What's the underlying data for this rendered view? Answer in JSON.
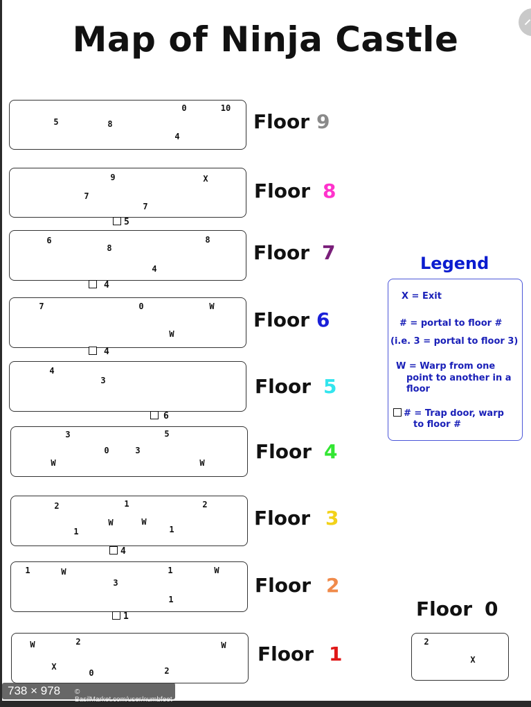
{
  "title": "Map of Ninja Castle",
  "floor_word": "Floor",
  "floors": [
    {
      "number": "9",
      "color": "#8a8a8a",
      "marks": [
        "0",
        "10",
        "5",
        "8",
        "4"
      ],
      "trap_door": ""
    },
    {
      "number": "8",
      "color": "#ff33cc",
      "marks": [
        "9",
        "X",
        "7",
        "7"
      ],
      "trap_door": "5"
    },
    {
      "number": "7",
      "color": "#7a1f7a",
      "marks": [
        "6",
        "8",
        "8",
        "4"
      ],
      "trap_door": "4"
    },
    {
      "number": "6",
      "color": "#1a20d8",
      "marks": [
        "7",
        "0",
        "W",
        "W"
      ],
      "trap_door": "4"
    },
    {
      "number": "5",
      "color": "#33e5ee",
      "marks": [
        "4",
        "3"
      ],
      "trap_door": "6"
    },
    {
      "number": "4",
      "color": "#33e633",
      "marks": [
        "3",
        "5",
        "0",
        "3",
        "W",
        "W"
      ],
      "trap_door": ""
    },
    {
      "number": "3",
      "color": "#f2d21a",
      "marks": [
        "2",
        "1",
        "2",
        "W",
        "W",
        "1",
        "1"
      ],
      "trap_door": "4"
    },
    {
      "number": "2",
      "color": "#f08a4a",
      "marks": [
        "1",
        "W",
        "1",
        "W",
        "3",
        "1"
      ],
      "trap_door": "1"
    },
    {
      "number": "1",
      "color": "#e01818",
      "marks": [
        "W",
        "2",
        "W",
        "X",
        "0",
        "2"
      ],
      "trap_door": ""
    },
    {
      "number": "0",
      "color": "#111111",
      "marks": [
        "2",
        "X"
      ],
      "trap_door": ""
    }
  ],
  "legend": {
    "title": "Legend",
    "items": [
      "X  = Exit",
      "# = portal to floor #",
      "(i.e. 3 = portal to floor 3)",
      "W = Warp from one",
      "point to another in a",
      "floor",
      "# = Trap door, warp",
      "to floor #"
    ]
  },
  "watermark": {
    "size": "738 × 978",
    "url": "© BasilMarket.com/user/numbfeet"
  }
}
